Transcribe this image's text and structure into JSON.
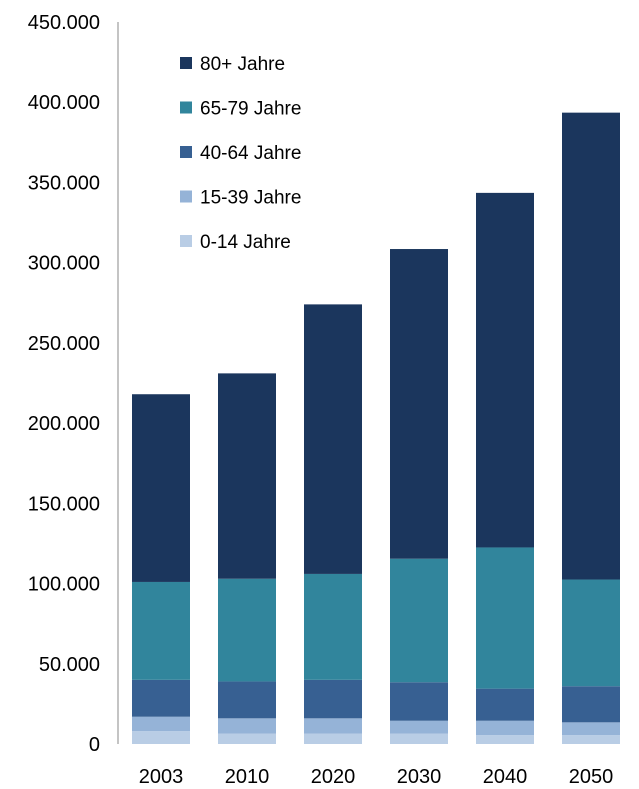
{
  "chart_data": {
    "type": "bar",
    "stacked": true,
    "title": "",
    "xlabel": "",
    "ylabel": "",
    "categories": [
      "2003",
      "2010",
      "2020",
      "2030",
      "2040",
      "2050"
    ],
    "ylim": [
      0,
      450000
    ],
    "y_ticks": [
      0,
      50000,
      100000,
      150000,
      200000,
      250000,
      300000,
      350000,
      400000,
      450000
    ],
    "y_tick_labels": [
      "0",
      "50.000",
      "100.000",
      "150.000",
      "200.000",
      "250.000",
      "300.000",
      "350.000",
      "400.000",
      "450.000"
    ],
    "grid": false,
    "legend_position": "top-left",
    "series": [
      {
        "name": "0-14 Jahre",
        "color": "#b9cde5",
        "values": [
          8000,
          6500,
          6500,
          6500,
          5500,
          5500
        ]
      },
      {
        "name": "15-39 Jahre",
        "color": "#95b3d7",
        "values": [
          9000,
          9500,
          9500,
          8000,
          9000,
          8000
        ]
      },
      {
        "name": "40-64 Jahre",
        "color": "#376092",
        "values": [
          23000,
          23000,
          24000,
          24000,
          20000,
          22500
        ]
      },
      {
        "name": "65-79 Jahre",
        "color": "#31859c",
        "values": [
          61000,
          64000,
          66000,
          77000,
          88000,
          66500
        ]
      },
      {
        "name": "80+ Jahre",
        "color": "#1b365d",
        "values": [
          117000,
          128000,
          168000,
          193000,
          221000,
          291000
        ]
      }
    ]
  }
}
